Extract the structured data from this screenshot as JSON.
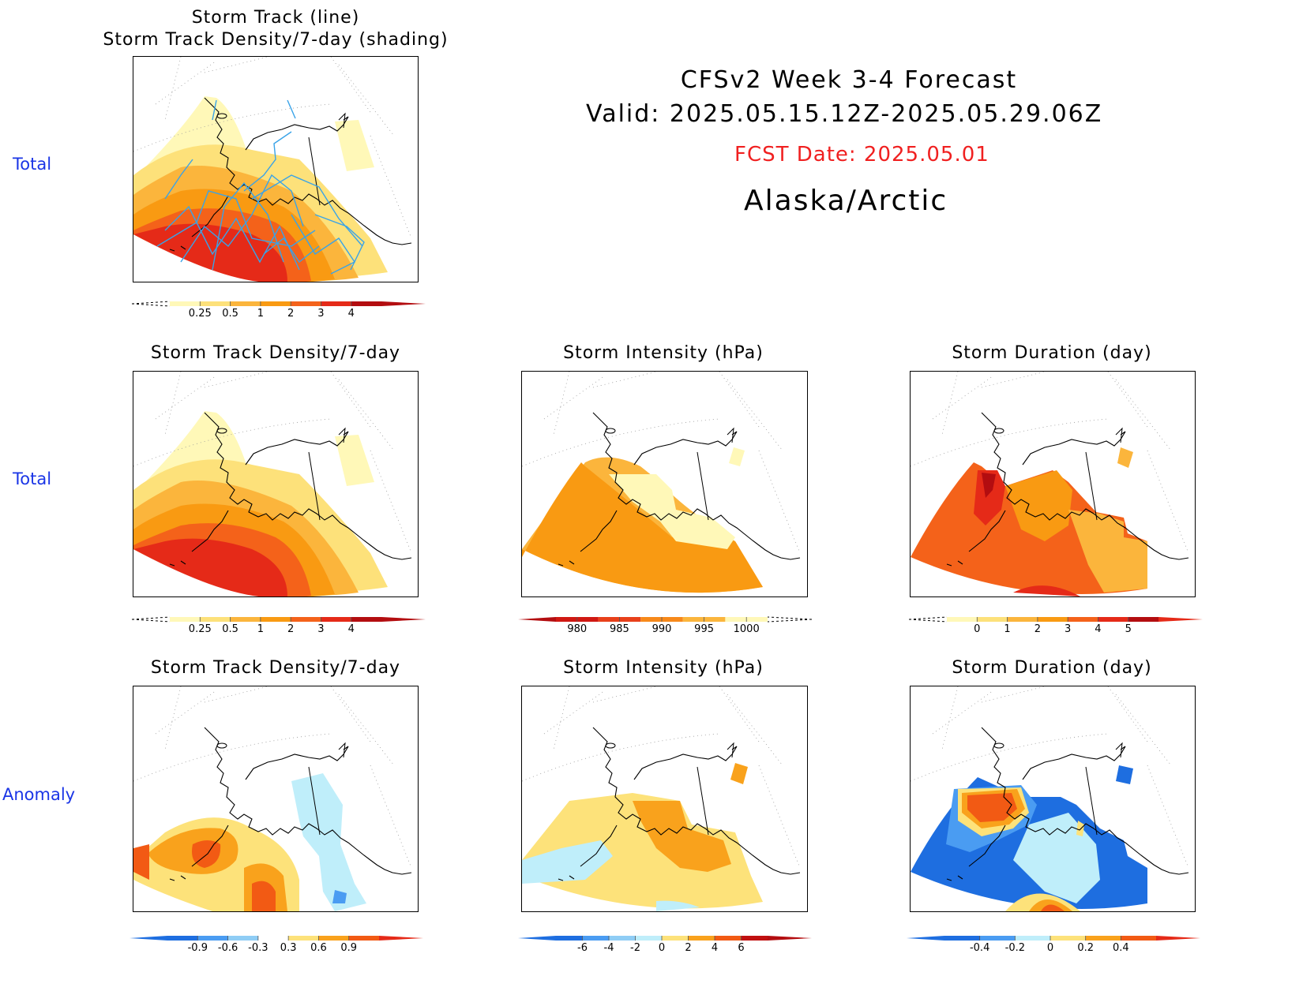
{
  "header": {
    "title": "CFSv2 Week 3-4 Forecast",
    "valid": "Valid: 2025.05.15.12Z-2025.05.29.06Z",
    "fcst_date": "FCST Date: 2025.05.01",
    "region": "Alaska/Arctic"
  },
  "row_labels": [
    "Total",
    "Total",
    "Anomaly"
  ],
  "panels": [
    {
      "id": "p0",
      "title_lines": [
        "Storm Track (line)",
        "Storm Track Density/7-day (shading)"
      ],
      "colorbar": {
        "labels": [
          "0.25",
          "0.5",
          "1",
          "2",
          "3",
          "4"
        ],
        "colors": [
          "#fff8b8",
          "#fde17a",
          "#fbb53c",
          "#f99a12",
          "#f4621a",
          "#e52a18",
          "#b30d10"
        ],
        "left_arrow": "dashed",
        "right_arrow": "#b30d10"
      }
    },
    {
      "id": "p1",
      "title_lines": [
        "Storm Track Density/7-day"
      ],
      "colorbar": {
        "labels": [
          "0.25",
          "0.5",
          "1",
          "2",
          "3",
          "4"
        ],
        "colors": [
          "#fff8b8",
          "#fde17a",
          "#fbb53c",
          "#f99a12",
          "#f4621a",
          "#e52a18",
          "#b30d10"
        ],
        "left_arrow": "dashed",
        "right_arrow": "#b30d10"
      }
    },
    {
      "id": "p2",
      "title_lines": [
        "Storm Intensity (hPa)"
      ],
      "colorbar": {
        "labels": [
          "980",
          "985",
          "990",
          "995",
          "1000"
        ],
        "colors": [
          "#d01812",
          "#e8401a",
          "#f7891a",
          "#fbb53c",
          "#fff8b8"
        ],
        "left_arrow": "#b30d10",
        "right_arrow": "dashed"
      }
    },
    {
      "id": "p3",
      "title_lines": [
        "Storm Duration (day)"
      ],
      "colorbar": {
        "labels": [
          "0",
          "1",
          "2",
          "3",
          "4",
          "5"
        ],
        "colors": [
          "#fff8b8",
          "#fde17a",
          "#fbb53c",
          "#f99a12",
          "#f4621a",
          "#e52a18",
          "#b30d10"
        ],
        "left_arrow": "dashed",
        "right_arrow": "#e52a18"
      }
    },
    {
      "id": "p4",
      "title_lines": [
        "Storm Track Density/7-day"
      ],
      "colorbar": {
        "labels": [
          "-0.9",
          "-0.6",
          "-0.3",
          "0.3",
          "0.6",
          "0.9"
        ],
        "colors": [
          "#1e6ee0",
          "#4a9cf2",
          "#8fcdf5",
          "#ffffff",
          "#fde27a",
          "#f9a21c",
          "#f25a14"
        ],
        "left_arrow": "#1e6ee0",
        "right_arrow": "#e52a18"
      }
    },
    {
      "id": "p5",
      "title_lines": [
        "Storm Intensity (hPa)"
      ],
      "colorbar": {
        "labels": [
          "-6",
          "-4",
          "-2",
          "0",
          "2",
          "4",
          "6"
        ],
        "colors": [
          "#1e6ee0",
          "#4a9cf2",
          "#8fcdf5",
          "#bfeefa",
          "#fde27a",
          "#f9a21c",
          "#f25a14",
          "#c01010"
        ],
        "left_arrow": "#1e6ee0",
        "right_arrow": "#b30d10"
      }
    },
    {
      "id": "p6",
      "title_lines": [
        "Storm Duration (day)"
      ],
      "colorbar": {
        "labels": [
          "-0.4",
          "-0.2",
          "0",
          "0.2",
          "0.4"
        ],
        "colors": [
          "#1e6ee0",
          "#4a9cf2",
          "#bfeefa",
          "#fde27a",
          "#f9a21c",
          "#f25a14"
        ],
        "left_arrow": "#1e6ee0",
        "right_arrow": "#e52a18"
      }
    }
  ]
}
